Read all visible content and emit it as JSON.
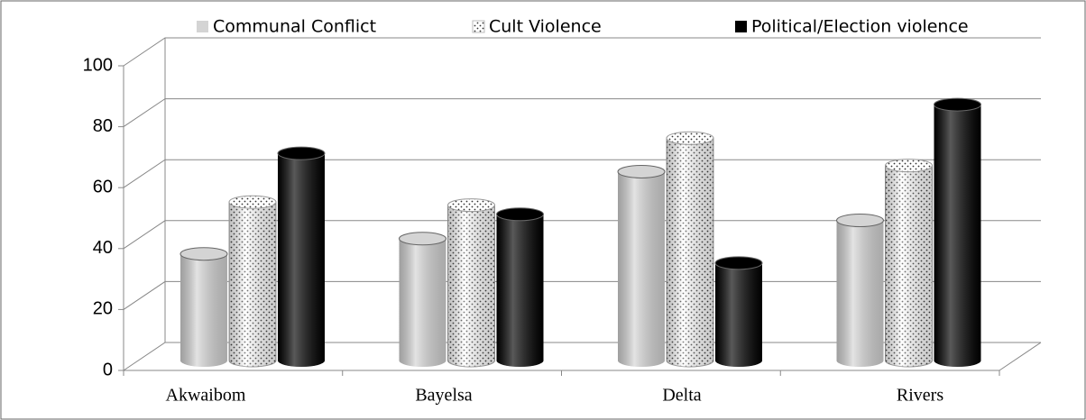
{
  "chart_data": {
    "type": "bar",
    "categories": [
      "Akwaibom",
      "Bayelsa",
      "Delta",
      "Rivers"
    ],
    "series": [
      {
        "name": "Communal Conflict",
        "color": "#d4d4d4",
        "values": [
          35,
          40,
          62,
          46
        ]
      },
      {
        "name": "Cult Violence",
        "color": "#ffffff",
        "pattern": "dots",
        "values": [
          52,
          51,
          73,
          64
        ]
      },
      {
        "name": "Political/Election violence",
        "color": "#000000",
        "values": [
          68,
          48,
          32,
          84
        ]
      }
    ],
    "ylim": [
      0,
      100
    ],
    "yticks": [
      0,
      20,
      40,
      60,
      80,
      100
    ],
    "grid": true,
    "legend": "top"
  }
}
